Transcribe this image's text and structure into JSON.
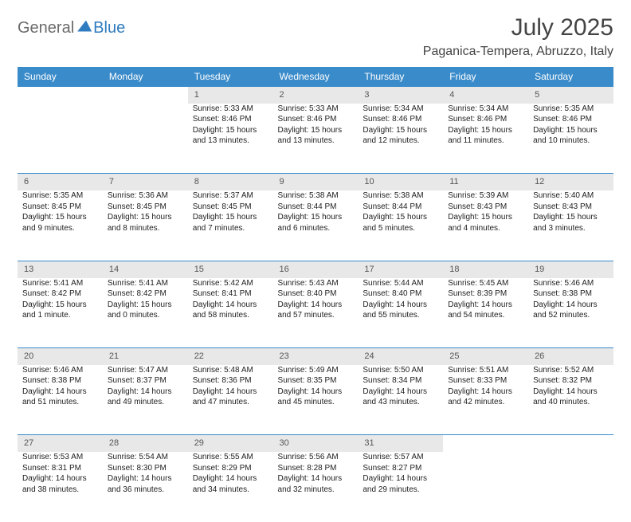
{
  "brand": {
    "part1": "General",
    "part2": "Blue"
  },
  "title": "July 2025",
  "location": "Paganica-Tempera, Abruzzo, Italy",
  "colors": {
    "header_bg": "#3a8bca",
    "header_text": "#ffffff",
    "daynum_bg": "#e8e8e8",
    "border": "#3a8bca",
    "brand_gray": "#6b6b6b",
    "brand_blue": "#2f7bbf"
  },
  "day_headers": [
    "Sunday",
    "Monday",
    "Tuesday",
    "Wednesday",
    "Thursday",
    "Friday",
    "Saturday"
  ],
  "weeks": [
    [
      null,
      null,
      {
        "n": "1",
        "sunrise": "5:33 AM",
        "sunset": "8:46 PM",
        "daylight": "15 hours and 13 minutes."
      },
      {
        "n": "2",
        "sunrise": "5:33 AM",
        "sunset": "8:46 PM",
        "daylight": "15 hours and 13 minutes."
      },
      {
        "n": "3",
        "sunrise": "5:34 AM",
        "sunset": "8:46 PM",
        "daylight": "15 hours and 12 minutes."
      },
      {
        "n": "4",
        "sunrise": "5:34 AM",
        "sunset": "8:46 PM",
        "daylight": "15 hours and 11 minutes."
      },
      {
        "n": "5",
        "sunrise": "5:35 AM",
        "sunset": "8:46 PM",
        "daylight": "15 hours and 10 minutes."
      }
    ],
    [
      {
        "n": "6",
        "sunrise": "5:35 AM",
        "sunset": "8:45 PM",
        "daylight": "15 hours and 9 minutes."
      },
      {
        "n": "7",
        "sunrise": "5:36 AM",
        "sunset": "8:45 PM",
        "daylight": "15 hours and 8 minutes."
      },
      {
        "n": "8",
        "sunrise": "5:37 AM",
        "sunset": "8:45 PM",
        "daylight": "15 hours and 7 minutes."
      },
      {
        "n": "9",
        "sunrise": "5:38 AM",
        "sunset": "8:44 PM",
        "daylight": "15 hours and 6 minutes."
      },
      {
        "n": "10",
        "sunrise": "5:38 AM",
        "sunset": "8:44 PM",
        "daylight": "15 hours and 5 minutes."
      },
      {
        "n": "11",
        "sunrise": "5:39 AM",
        "sunset": "8:43 PM",
        "daylight": "15 hours and 4 minutes."
      },
      {
        "n": "12",
        "sunrise": "5:40 AM",
        "sunset": "8:43 PM",
        "daylight": "15 hours and 3 minutes."
      }
    ],
    [
      {
        "n": "13",
        "sunrise": "5:41 AM",
        "sunset": "8:42 PM",
        "daylight": "15 hours and 1 minute."
      },
      {
        "n": "14",
        "sunrise": "5:41 AM",
        "sunset": "8:42 PM",
        "daylight": "15 hours and 0 minutes."
      },
      {
        "n": "15",
        "sunrise": "5:42 AM",
        "sunset": "8:41 PM",
        "daylight": "14 hours and 58 minutes."
      },
      {
        "n": "16",
        "sunrise": "5:43 AM",
        "sunset": "8:40 PM",
        "daylight": "14 hours and 57 minutes."
      },
      {
        "n": "17",
        "sunrise": "5:44 AM",
        "sunset": "8:40 PM",
        "daylight": "14 hours and 55 minutes."
      },
      {
        "n": "18",
        "sunrise": "5:45 AM",
        "sunset": "8:39 PM",
        "daylight": "14 hours and 54 minutes."
      },
      {
        "n": "19",
        "sunrise": "5:46 AM",
        "sunset": "8:38 PM",
        "daylight": "14 hours and 52 minutes."
      }
    ],
    [
      {
        "n": "20",
        "sunrise": "5:46 AM",
        "sunset": "8:38 PM",
        "daylight": "14 hours and 51 minutes."
      },
      {
        "n": "21",
        "sunrise": "5:47 AM",
        "sunset": "8:37 PM",
        "daylight": "14 hours and 49 minutes."
      },
      {
        "n": "22",
        "sunrise": "5:48 AM",
        "sunset": "8:36 PM",
        "daylight": "14 hours and 47 minutes."
      },
      {
        "n": "23",
        "sunrise": "5:49 AM",
        "sunset": "8:35 PM",
        "daylight": "14 hours and 45 minutes."
      },
      {
        "n": "24",
        "sunrise": "5:50 AM",
        "sunset": "8:34 PM",
        "daylight": "14 hours and 43 minutes."
      },
      {
        "n": "25",
        "sunrise": "5:51 AM",
        "sunset": "8:33 PM",
        "daylight": "14 hours and 42 minutes."
      },
      {
        "n": "26",
        "sunrise": "5:52 AM",
        "sunset": "8:32 PM",
        "daylight": "14 hours and 40 minutes."
      }
    ],
    [
      {
        "n": "27",
        "sunrise": "5:53 AM",
        "sunset": "8:31 PM",
        "daylight": "14 hours and 38 minutes."
      },
      {
        "n": "28",
        "sunrise": "5:54 AM",
        "sunset": "8:30 PM",
        "daylight": "14 hours and 36 minutes."
      },
      {
        "n": "29",
        "sunrise": "5:55 AM",
        "sunset": "8:29 PM",
        "daylight": "14 hours and 34 minutes."
      },
      {
        "n": "30",
        "sunrise": "5:56 AM",
        "sunset": "8:28 PM",
        "daylight": "14 hours and 32 minutes."
      },
      {
        "n": "31",
        "sunrise": "5:57 AM",
        "sunset": "8:27 PM",
        "daylight": "14 hours and 29 minutes."
      },
      null,
      null
    ]
  ],
  "labels": {
    "sunrise": "Sunrise: ",
    "sunset": "Sunset: ",
    "daylight": "Daylight: "
  }
}
